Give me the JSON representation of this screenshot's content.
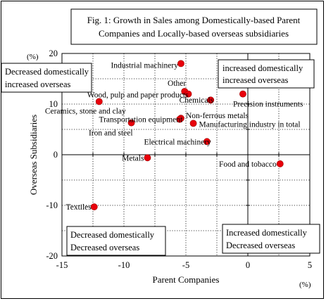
{
  "chart_data": {
    "type": "scatter",
    "title_lines": [
      "Fig. 1: Growth in Sales among Domestically-based Parent",
      "Companies and Locally-based overseas subsidiaries"
    ],
    "xlabel": "Parent Companies",
    "ylabel": "Overseas Subsidiaries",
    "x_unit": "(%)",
    "y_unit": "(%)",
    "xlim": [
      -15,
      5
    ],
    "ylim": [
      -20,
      20
    ],
    "xticks": [
      -15,
      -10,
      -5,
      0,
      5
    ],
    "yticks": [
      -20,
      -10,
      0,
      10,
      20
    ],
    "grid": true,
    "marker_color": "#e8000b",
    "points": [
      {
        "label": "Industrial machinery",
        "x": -5.4,
        "y": 18.0
      },
      {
        "label": "Other",
        "x": -5.1,
        "y": 12.5
      },
      {
        "label": "Wood, pulp and paper products",
        "x": -4.8,
        "y": 12.0
      },
      {
        "label": "Chemicals",
        "x": -3.0,
        "y": 10.8
      },
      {
        "label": "Precision instruments",
        "x": -0.4,
        "y": 12.0
      },
      {
        "label": "Ceramics, stone and clay",
        "x": -12.0,
        "y": 10.5
      },
      {
        "label": "Non-ferrous metals",
        "x": -5.4,
        "y": 7.2
      },
      {
        "label": "Transportation equipment",
        "x": -5.5,
        "y": 7.0
      },
      {
        "label": "Iron and steel",
        "x": -9.4,
        "y": 6.3
      },
      {
        "label": "Manufacturing industry in total",
        "x": -4.4,
        "y": 6.2
      },
      {
        "label": "Electrical machinery",
        "x": -3.3,
        "y": 2.6
      },
      {
        "label": "Metals",
        "x": -8.1,
        "y": -0.6
      },
      {
        "label": "Food and tobacco",
        "x": 2.6,
        "y": -1.8
      },
      {
        "label": "Textiles",
        "x": -12.4,
        "y": -10.3
      }
    ],
    "quadrant_labels": {
      "top_left": [
        "Decreased domestically",
        "increased overseas"
      ],
      "top_right": [
        "increased domestically",
        "increased overseas"
      ],
      "bottom_left": [
        "Decreased domestically",
        "Decreased overseas"
      ],
      "bottom_right": [
        "Increased domestically",
        "Decreased overseas"
      ]
    }
  }
}
